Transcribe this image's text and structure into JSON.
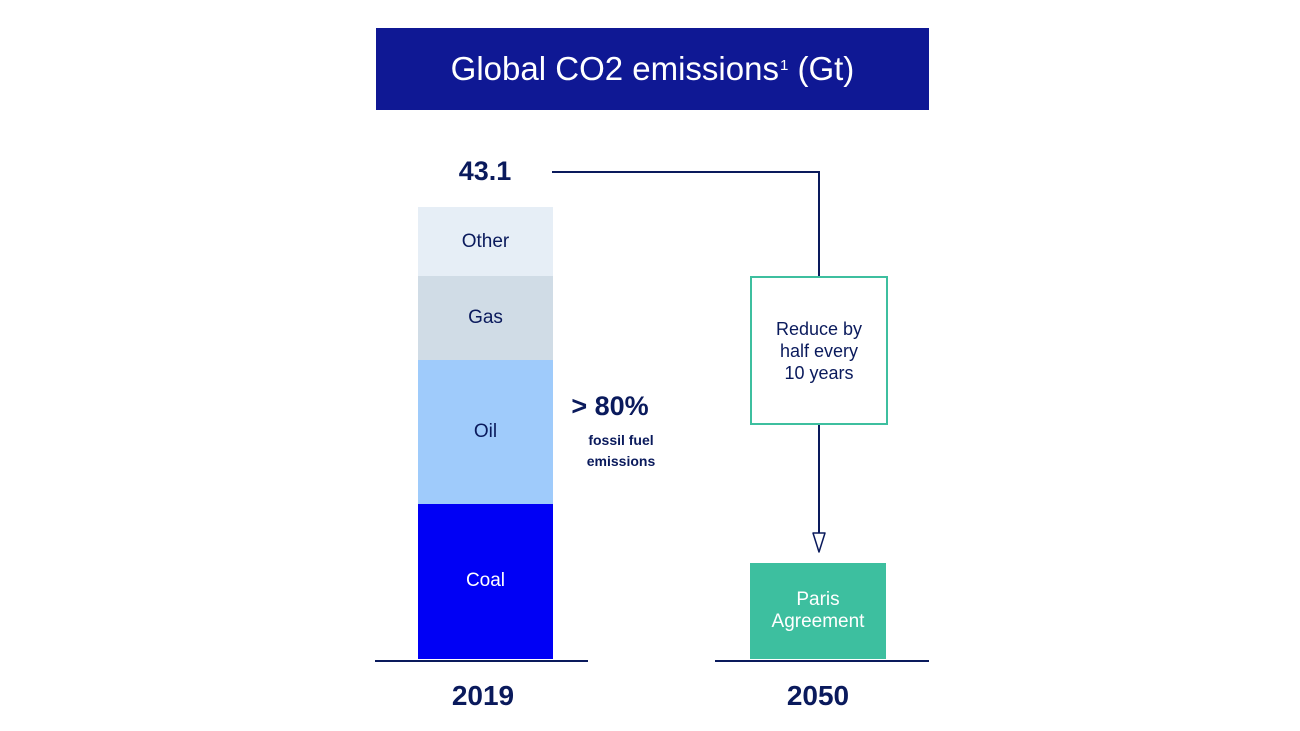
{
  "title": {
    "main": "Global CO2 emissions",
    "superscript": "1",
    "unit": "(Gt)"
  },
  "colors": {
    "title_bg": "#0f1894",
    "coal": "#0000f5",
    "oil": "#9fcbfb",
    "gas": "#d0dce6",
    "other": "#e6eef6",
    "accent_green": "#3dbf9f",
    "text_dark": "#0a1a5c"
  },
  "chart_data": {
    "type": "bar",
    "stacked": true,
    "categories": [
      "2019"
    ],
    "total_label": "43.1",
    "total": 43.1,
    "series": [
      {
        "name": "Coal",
        "values": [
          14.8
        ]
      },
      {
        "name": "Oil",
        "values": [
          13.7
        ]
      },
      {
        "name": "Gas",
        "values": [
          8.0
        ]
      },
      {
        "name": "Other",
        "values": [
          6.6
        ]
      }
    ],
    "annotations": {
      "fossil_share": "> 80%",
      "fossil_note_line1": "fossil fuel",
      "fossil_note_line2": "emissions",
      "reduce_line1": "Reduce by",
      "reduce_line2": "half every",
      "reduce_line3": "10 years",
      "target_line1": "Paris",
      "target_line2": "Agreement"
    },
    "years": {
      "left": "2019",
      "right": "2050"
    }
  }
}
